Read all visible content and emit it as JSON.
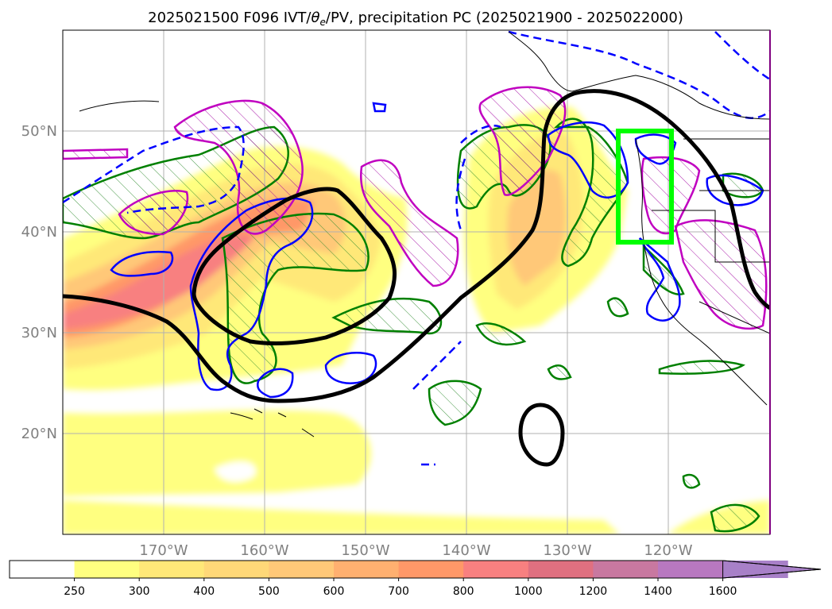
{
  "title": "2025021500 F096 IVT/θe/PV, precipitation PC (2025021900 - 2025022000)",
  "title_parts": {
    "prefix": "2025021500 F096 IVT/",
    "theta": "θ",
    "theta_sub": "e",
    "suffix": "/PV, precipitation PC (2025021900 - 2025022000)"
  },
  "map": {
    "lon_range": [
      -180,
      -110
    ],
    "lat_range": [
      10,
      60
    ],
    "lat_ticks": [
      {
        "value": 50,
        "label": "50°N"
      },
      {
        "value": 40,
        "label": "40°N"
      },
      {
        "value": 30,
        "label": "30°N"
      },
      {
        "value": 20,
        "label": "20°N"
      }
    ],
    "lon_ticks": [
      {
        "value": -170,
        "label": "170°W"
      },
      {
        "value": -160,
        "label": "160°W"
      },
      {
        "value": -150,
        "label": "150°W"
      },
      {
        "value": -140,
        "label": "140°W"
      },
      {
        "value": -130,
        "label": "130°W"
      },
      {
        "value": -120,
        "label": "120°W"
      }
    ],
    "grid": true,
    "highlight_box": {
      "lon": [
        -125,
        -120
      ],
      "lat": [
        39,
        50
      ],
      "color": "#00ff00"
    },
    "colors": {
      "theta_contour": "#000000",
      "pv_hatch": "#008000",
      "pv_solid": "#0000ff",
      "pc_magenta": "#c000c0",
      "coast": "#000000"
    }
  },
  "colorbar": {
    "levels": [
      "250",
      "300",
      "400",
      "500",
      "600",
      "700",
      "800",
      "1000",
      "1200",
      "1400",
      "1600"
    ],
    "colors": [
      "#ffff80",
      "#ffe878",
      "#ffd878",
      "#ffc878",
      "#ffb070",
      "#ff9868",
      "#f88080",
      "#e07080",
      "#c878a0",
      "#b878c0",
      "#a880c8"
    ],
    "under_color": "#ffffff",
    "extend": "max"
  }
}
